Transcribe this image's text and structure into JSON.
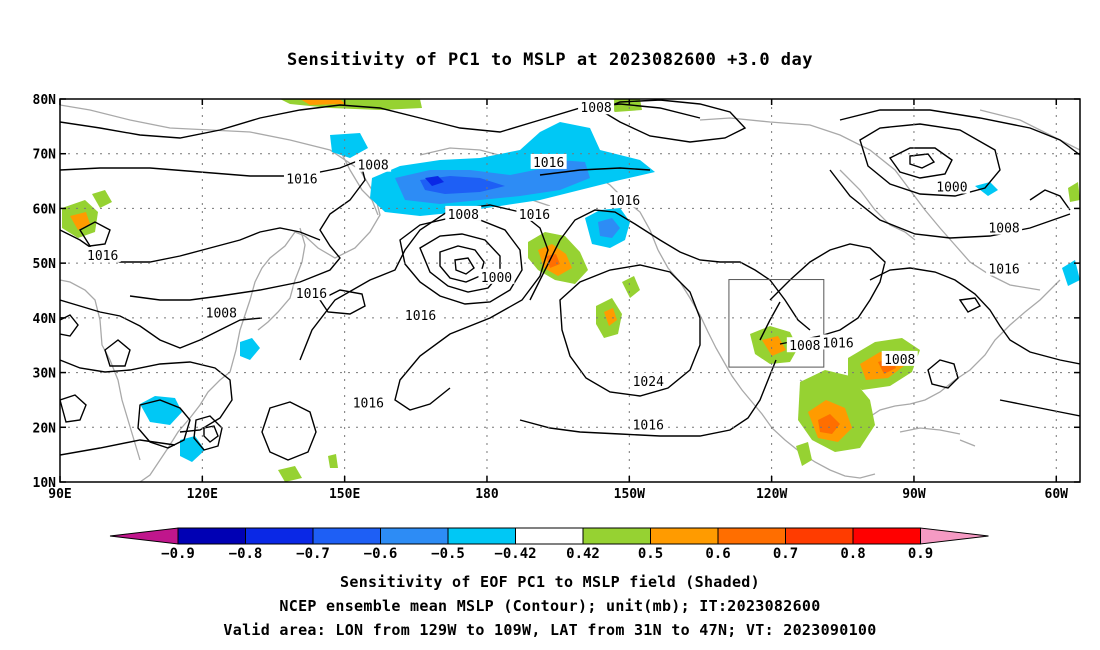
{
  "title": "Sensitivity of PC1 to MSLP at 2023082600 +3.0 day",
  "map": {
    "lon_range": [
      90,
      305
    ],
    "lat_range": [
      10,
      80
    ],
    "lat_ticks": [
      {
        "value": 80,
        "label": "80N"
      },
      {
        "value": 70,
        "label": "70N"
      },
      {
        "value": 60,
        "label": "60N"
      },
      {
        "value": 50,
        "label": "50N"
      },
      {
        "value": 40,
        "label": "40N"
      },
      {
        "value": 30,
        "label": "30N"
      },
      {
        "value": 20,
        "label": "20N"
      },
      {
        "value": 10,
        "label": "10N"
      }
    ],
    "lon_ticks": [
      {
        "value": 90,
        "label": "90E"
      },
      {
        "value": 120,
        "label": "120E"
      },
      {
        "value": 150,
        "label": "150E"
      },
      {
        "value": 180,
        "label": "180"
      },
      {
        "value": 210,
        "label": "150W"
      },
      {
        "value": 240,
        "label": "120W"
      },
      {
        "value": 270,
        "label": "90W"
      },
      {
        "value": 300,
        "label": "60W"
      }
    ],
    "gridlines": "dotted",
    "valid_box": {
      "lon_min": 231,
      "lon_max": 251,
      "lat_min": 31,
      "lat_max": 47
    },
    "contour_labels": [
      {
        "text": "1008",
        "lon": 203,
        "lat": 78.5
      },
      {
        "text": "1016",
        "lon": 193,
        "lat": 68.5
      },
      {
        "text": "1008",
        "lon": 156,
        "lat": 68
      },
      {
        "text": "1016",
        "lon": 141,
        "lat": 65.5
      },
      {
        "text": "1000",
        "lon": 278,
        "lat": 64
      },
      {
        "text": "1008",
        "lon": 175,
        "lat": 59
      },
      {
        "text": "1016",
        "lon": 190,
        "lat": 59
      },
      {
        "text": "1016",
        "lon": 209,
        "lat": 61.5
      },
      {
        "text": "1008",
        "lon": 289,
        "lat": 56.5
      },
      {
        "text": "1016",
        "lon": 99,
        "lat": 51.5
      },
      {
        "text": "1000",
        "lon": 182,
        "lat": 47.5
      },
      {
        "text": "1016",
        "lon": 289,
        "lat": 49
      },
      {
        "text": "1016",
        "lon": 143,
        "lat": 44.5
      },
      {
        "text": "1008",
        "lon": 124,
        "lat": 41
      },
      {
        "text": "1016",
        "lon": 166,
        "lat": 40.5
      },
      {
        "text": "1008",
        "lon": 247,
        "lat": 35
      },
      {
        "text": "1016",
        "lon": 254,
        "lat": 35.5
      },
      {
        "text": "1008",
        "lon": 267,
        "lat": 32.5
      },
      {
        "text": "1024",
        "lon": 214,
        "lat": 28.5
      },
      {
        "text": "1016",
        "lon": 155,
        "lat": 24.5
      },
      {
        "text": "1016",
        "lon": 214,
        "lat": 20.5
      }
    ]
  },
  "colorbar": {
    "labels": [
      "−0.9",
      "−0.8",
      "−0.7",
      "−0.6",
      "−0.5",
      "−0.42",
      "0.42",
      "0.5",
      "0.6",
      "0.7",
      "0.8",
      "0.9"
    ],
    "colors": {
      "below_min": "#c0168c",
      "bins": [
        "#0000b4",
        "#0a28e6",
        "#1e5ff5",
        "#2d8cf5",
        "#00c8f5",
        "#ffffff",
        "#96d232",
        "#ff9b00",
        "#ff6e00",
        "#ff3c00",
        "#ff0000"
      ],
      "above_max": "#f59ac3"
    }
  },
  "captions": {
    "line1": "Sensitivity of EOF PC1 to MSLP field (Shaded)",
    "line2": "NCEP ensemble mean MSLP (Contour); unit(mb); IT:2023082600",
    "line3": "Valid area: LON from 129W to 109W, LAT from 31N to 47N; VT: 2023090100"
  },
  "colors": {
    "contour": "#000000",
    "coastline": "#a9a9a9",
    "grid": "#777777",
    "negative": "#00c8f5",
    "positive": "#96d232"
  }
}
